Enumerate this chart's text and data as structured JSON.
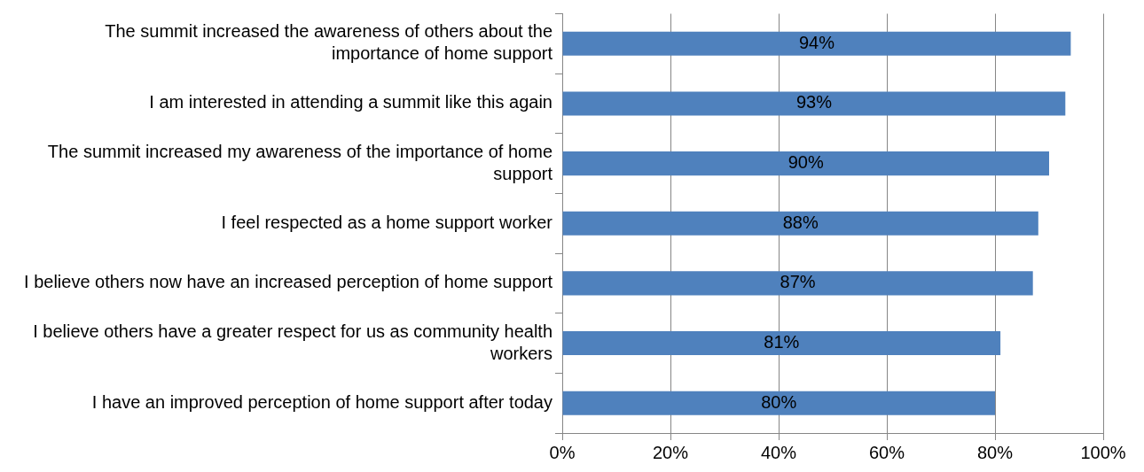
{
  "chart_data": {
    "type": "bar",
    "orientation": "horizontal",
    "categories": [
      "The summit increased the awareness of others about the importance of home support",
      "I am interested in attending a summit like this again",
      "The summit increased my awareness of the importance of home support",
      "I feel respected as a home support worker",
      "I believe others now have an increased perception of home support",
      "I believe others have a greater respect for us as community health workers",
      "I have an improved perception of home support after today"
    ],
    "values": [
      94,
      93,
      90,
      88,
      87,
      81,
      80
    ],
    "value_labels": [
      "94%",
      "93%",
      "90%",
      "88%",
      "87%",
      "81%",
      "80%"
    ],
    "color": "#4f81bd",
    "xlim": [
      0,
      100
    ],
    "xticks": [
      {
        "value": 0,
        "label": "0%"
      },
      {
        "value": 20,
        "label": "20%"
      },
      {
        "value": 40,
        "label": "40%"
      },
      {
        "value": 60,
        "label": "60%"
      },
      {
        "value": 80,
        "label": "80%"
      },
      {
        "value": 100,
        "label": "100%"
      }
    ],
    "grid": "x"
  }
}
